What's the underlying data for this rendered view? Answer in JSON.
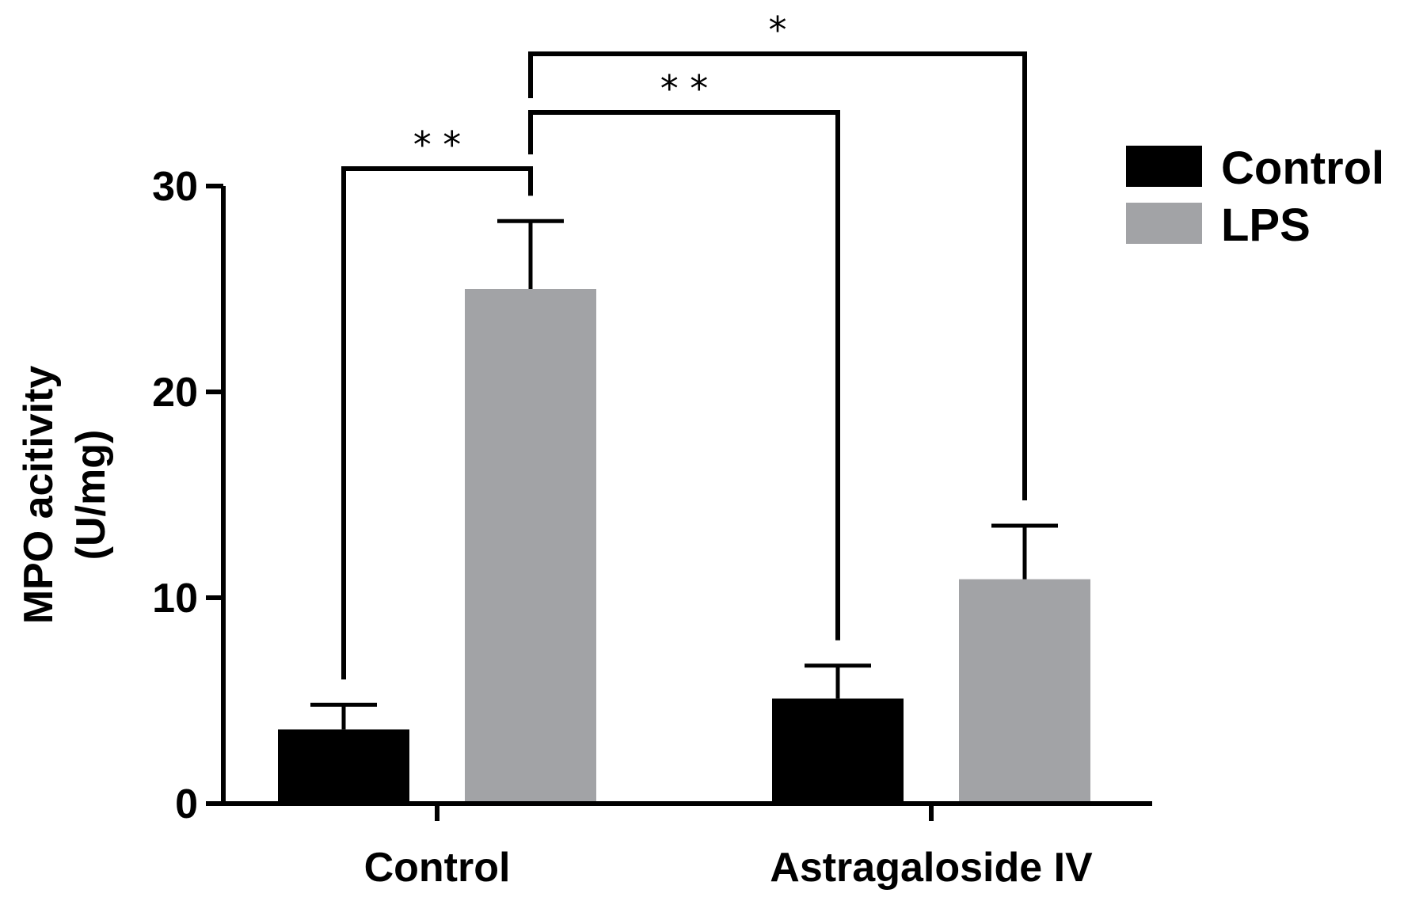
{
  "chart_data": {
    "type": "bar",
    "title": "",
    "xlabel": "",
    "ylabel": [
      "MPO acitivity",
      "(U/mg)"
    ],
    "ylim": [
      0,
      30
    ],
    "yticks": [
      0,
      10,
      20,
      30
    ],
    "categories": [
      "Control",
      "Astragaloside IV"
    ],
    "series": [
      {
        "name": "Control",
        "color": "#000000",
        "values": [
          3.6,
          5.1
        ],
        "errors": [
          1.2,
          1.6
        ]
      },
      {
        "name": "LPS",
        "color": "#a2a3a6",
        "values": [
          25.0,
          10.9
        ],
        "errors": [
          3.3,
          2.6
        ]
      }
    ],
    "legend": {
      "position": "top-right",
      "entries": [
        "Control",
        "LPS"
      ]
    },
    "significance": [
      {
        "from": {
          "category": 0,
          "series": 0
        },
        "to": {
          "category": 0,
          "series": 1
        },
        "label": "* *",
        "level": 0
      },
      {
        "from": {
          "category": 0,
          "series": 1
        },
        "to": {
          "category": 1,
          "series": 0
        },
        "label": "* *",
        "level": 1
      },
      {
        "from": {
          "category": 0,
          "series": 1
        },
        "to": {
          "category": 1,
          "series": 1
        },
        "label": "*",
        "level": 2
      }
    ]
  }
}
